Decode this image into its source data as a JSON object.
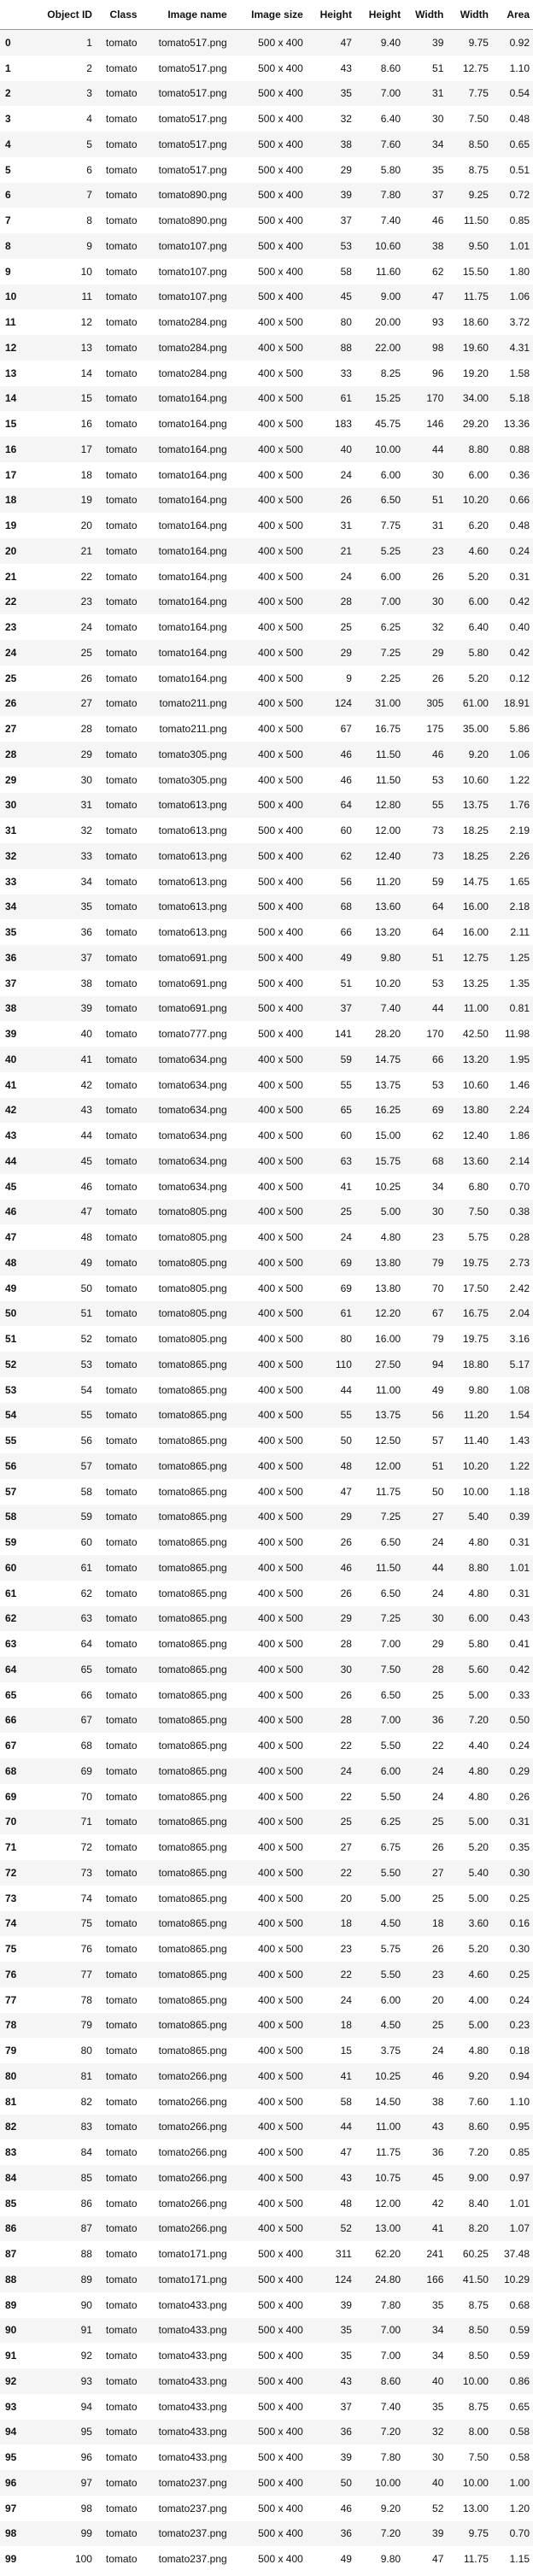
{
  "columns": [
    "",
    "Object ID",
    "Class",
    "Image name",
    "Image size",
    "Height",
    "Height",
    "Width",
    "Width",
    "Area"
  ],
  "rows": [
    [
      "0",
      "1",
      "tomato",
      "tomato517.png",
      "500 x 400",
      "47",
      "9.40",
      "39",
      "9.75",
      "0.92"
    ],
    [
      "1",
      "2",
      "tomato",
      "tomato517.png",
      "500 x 400",
      "43",
      "8.60",
      "51",
      "12.75",
      "1.10"
    ],
    [
      "2",
      "3",
      "tomato",
      "tomato517.png",
      "500 x 400",
      "35",
      "7.00",
      "31",
      "7.75",
      "0.54"
    ],
    [
      "3",
      "4",
      "tomato",
      "tomato517.png",
      "500 x 400",
      "32",
      "6.40",
      "30",
      "7.50",
      "0.48"
    ],
    [
      "4",
      "5",
      "tomato",
      "tomato517.png",
      "500 x 400",
      "38",
      "7.60",
      "34",
      "8.50",
      "0.65"
    ],
    [
      "5",
      "6",
      "tomato",
      "tomato517.png",
      "500 x 400",
      "29",
      "5.80",
      "35",
      "8.75",
      "0.51"
    ],
    [
      "6",
      "7",
      "tomato",
      "tomato890.png",
      "500 x 400",
      "39",
      "7.80",
      "37",
      "9.25",
      "0.72"
    ],
    [
      "7",
      "8",
      "tomato",
      "tomato890.png",
      "500 x 400",
      "37",
      "7.40",
      "46",
      "11.50",
      "0.85"
    ],
    [
      "8",
      "9",
      "tomato",
      "tomato107.png",
      "500 x 400",
      "53",
      "10.60",
      "38",
      "9.50",
      "1.01"
    ],
    [
      "9",
      "10",
      "tomato",
      "tomato107.png",
      "500 x 400",
      "58",
      "11.60",
      "62",
      "15.50",
      "1.80"
    ],
    [
      "10",
      "11",
      "tomato",
      "tomato107.png",
      "500 x 400",
      "45",
      "9.00",
      "47",
      "11.75",
      "1.06"
    ],
    [
      "11",
      "12",
      "tomato",
      "tomato284.png",
      "400 x 500",
      "80",
      "20.00",
      "93",
      "18.60",
      "3.72"
    ],
    [
      "12",
      "13",
      "tomato",
      "tomato284.png",
      "400 x 500",
      "88",
      "22.00",
      "98",
      "19.60",
      "4.31"
    ],
    [
      "13",
      "14",
      "tomato",
      "tomato284.png",
      "400 x 500",
      "33",
      "8.25",
      "96",
      "19.20",
      "1.58"
    ],
    [
      "14",
      "15",
      "tomato",
      "tomato164.png",
      "400 x 500",
      "61",
      "15.25",
      "170",
      "34.00",
      "5.18"
    ],
    [
      "15",
      "16",
      "tomato",
      "tomato164.png",
      "400 x 500",
      "183",
      "45.75",
      "146",
      "29.20",
      "13.36"
    ],
    [
      "16",
      "17",
      "tomato",
      "tomato164.png",
      "400 x 500",
      "40",
      "10.00",
      "44",
      "8.80",
      "0.88"
    ],
    [
      "17",
      "18",
      "tomato",
      "tomato164.png",
      "400 x 500",
      "24",
      "6.00",
      "30",
      "6.00",
      "0.36"
    ],
    [
      "18",
      "19",
      "tomato",
      "tomato164.png",
      "400 x 500",
      "26",
      "6.50",
      "51",
      "10.20",
      "0.66"
    ],
    [
      "19",
      "20",
      "tomato",
      "tomato164.png",
      "400 x 500",
      "31",
      "7.75",
      "31",
      "6.20",
      "0.48"
    ],
    [
      "20",
      "21",
      "tomato",
      "tomato164.png",
      "400 x 500",
      "21",
      "5.25",
      "23",
      "4.60",
      "0.24"
    ],
    [
      "21",
      "22",
      "tomato",
      "tomato164.png",
      "400 x 500",
      "24",
      "6.00",
      "26",
      "5.20",
      "0.31"
    ],
    [
      "22",
      "23",
      "tomato",
      "tomato164.png",
      "400 x 500",
      "28",
      "7.00",
      "30",
      "6.00",
      "0.42"
    ],
    [
      "23",
      "24",
      "tomato",
      "tomato164.png",
      "400 x 500",
      "25",
      "6.25",
      "32",
      "6.40",
      "0.40"
    ],
    [
      "24",
      "25",
      "tomato",
      "tomato164.png",
      "400 x 500",
      "29",
      "7.25",
      "29",
      "5.80",
      "0.42"
    ],
    [
      "25",
      "26",
      "tomato",
      "tomato164.png",
      "400 x 500",
      "9",
      "2.25",
      "26",
      "5.20",
      "0.12"
    ],
    [
      "26",
      "27",
      "tomato",
      "tomato211.png",
      "400 x 500",
      "124",
      "31.00",
      "305",
      "61.00",
      "18.91"
    ],
    [
      "27",
      "28",
      "tomato",
      "tomato211.png",
      "400 x 500",
      "67",
      "16.75",
      "175",
      "35.00",
      "5.86"
    ],
    [
      "28",
      "29",
      "tomato",
      "tomato305.png",
      "400 x 500",
      "46",
      "11.50",
      "46",
      "9.20",
      "1.06"
    ],
    [
      "29",
      "30",
      "tomato",
      "tomato305.png",
      "400 x 500",
      "46",
      "11.50",
      "53",
      "10.60",
      "1.22"
    ],
    [
      "30",
      "31",
      "tomato",
      "tomato613.png",
      "500 x 400",
      "64",
      "12.80",
      "55",
      "13.75",
      "1.76"
    ],
    [
      "31",
      "32",
      "tomato",
      "tomato613.png",
      "500 x 400",
      "60",
      "12.00",
      "73",
      "18.25",
      "2.19"
    ],
    [
      "32",
      "33",
      "tomato",
      "tomato613.png",
      "500 x 400",
      "62",
      "12.40",
      "73",
      "18.25",
      "2.26"
    ],
    [
      "33",
      "34",
      "tomato",
      "tomato613.png",
      "500 x 400",
      "56",
      "11.20",
      "59",
      "14.75",
      "1.65"
    ],
    [
      "34",
      "35",
      "tomato",
      "tomato613.png",
      "500 x 400",
      "68",
      "13.60",
      "64",
      "16.00",
      "2.18"
    ],
    [
      "35",
      "36",
      "tomato",
      "tomato613.png",
      "500 x 400",
      "66",
      "13.20",
      "64",
      "16.00",
      "2.11"
    ],
    [
      "36",
      "37",
      "tomato",
      "tomato691.png",
      "500 x 400",
      "49",
      "9.80",
      "51",
      "12.75",
      "1.25"
    ],
    [
      "37",
      "38",
      "tomato",
      "tomato691.png",
      "500 x 400",
      "51",
      "10.20",
      "53",
      "13.25",
      "1.35"
    ],
    [
      "38",
      "39",
      "tomato",
      "tomato691.png",
      "500 x 400",
      "37",
      "7.40",
      "44",
      "11.00",
      "0.81"
    ],
    [
      "39",
      "40",
      "tomato",
      "tomato777.png",
      "500 x 400",
      "141",
      "28.20",
      "170",
      "42.50",
      "11.98"
    ],
    [
      "40",
      "41",
      "tomato",
      "tomato634.png",
      "400 x 500",
      "59",
      "14.75",
      "66",
      "13.20",
      "1.95"
    ],
    [
      "41",
      "42",
      "tomato",
      "tomato634.png",
      "400 x 500",
      "55",
      "13.75",
      "53",
      "10.60",
      "1.46"
    ],
    [
      "42",
      "43",
      "tomato",
      "tomato634.png",
      "400 x 500",
      "65",
      "16.25",
      "69",
      "13.80",
      "2.24"
    ],
    [
      "43",
      "44",
      "tomato",
      "tomato634.png",
      "400 x 500",
      "60",
      "15.00",
      "62",
      "12.40",
      "1.86"
    ],
    [
      "44",
      "45",
      "tomato",
      "tomato634.png",
      "400 x 500",
      "63",
      "15.75",
      "68",
      "13.60",
      "2.14"
    ],
    [
      "45",
      "46",
      "tomato",
      "tomato634.png",
      "400 x 500",
      "41",
      "10.25",
      "34",
      "6.80",
      "0.70"
    ],
    [
      "46",
      "47",
      "tomato",
      "tomato805.png",
      "400 x 500",
      "25",
      "5.00",
      "30",
      "7.50",
      "0.38"
    ],
    [
      "47",
      "48",
      "tomato",
      "tomato805.png",
      "400 x 500",
      "24",
      "4.80",
      "23",
      "5.75",
      "0.28"
    ],
    [
      "48",
      "49",
      "tomato",
      "tomato805.png",
      "400 x 500",
      "69",
      "13.80",
      "79",
      "19.75",
      "2.73"
    ],
    [
      "49",
      "50",
      "tomato",
      "tomato805.png",
      "400 x 500",
      "69",
      "13.80",
      "70",
      "17.50",
      "2.42"
    ],
    [
      "50",
      "51",
      "tomato",
      "tomato805.png",
      "400 x 500",
      "61",
      "12.20",
      "67",
      "16.75",
      "2.04"
    ],
    [
      "51",
      "52",
      "tomato",
      "tomato805.png",
      "400 x 500",
      "80",
      "16.00",
      "79",
      "19.75",
      "3.16"
    ],
    [
      "52",
      "53",
      "tomato",
      "tomato865.png",
      "400 x 500",
      "110",
      "27.50",
      "94",
      "18.80",
      "5.17"
    ],
    [
      "53",
      "54",
      "tomato",
      "tomato865.png",
      "400 x 500",
      "44",
      "11.00",
      "49",
      "9.80",
      "1.08"
    ],
    [
      "54",
      "55",
      "tomato",
      "tomato865.png",
      "400 x 500",
      "55",
      "13.75",
      "56",
      "11.20",
      "1.54"
    ],
    [
      "55",
      "56",
      "tomato",
      "tomato865.png",
      "400 x 500",
      "50",
      "12.50",
      "57",
      "11.40",
      "1.43"
    ],
    [
      "56",
      "57",
      "tomato",
      "tomato865.png",
      "400 x 500",
      "48",
      "12.00",
      "51",
      "10.20",
      "1.22"
    ],
    [
      "57",
      "58",
      "tomato",
      "tomato865.png",
      "400 x 500",
      "47",
      "11.75",
      "50",
      "10.00",
      "1.18"
    ],
    [
      "58",
      "59",
      "tomato",
      "tomato865.png",
      "400 x 500",
      "29",
      "7.25",
      "27",
      "5.40",
      "0.39"
    ],
    [
      "59",
      "60",
      "tomato",
      "tomato865.png",
      "400 x 500",
      "26",
      "6.50",
      "24",
      "4.80",
      "0.31"
    ],
    [
      "60",
      "61",
      "tomato",
      "tomato865.png",
      "400 x 500",
      "46",
      "11.50",
      "44",
      "8.80",
      "1.01"
    ],
    [
      "61",
      "62",
      "tomato",
      "tomato865.png",
      "400 x 500",
      "26",
      "6.50",
      "24",
      "4.80",
      "0.31"
    ],
    [
      "62",
      "63",
      "tomato",
      "tomato865.png",
      "400 x 500",
      "29",
      "7.25",
      "30",
      "6.00",
      "0.43"
    ],
    [
      "63",
      "64",
      "tomato",
      "tomato865.png",
      "400 x 500",
      "28",
      "7.00",
      "29",
      "5.80",
      "0.41"
    ],
    [
      "64",
      "65",
      "tomato",
      "tomato865.png",
      "400 x 500",
      "30",
      "7.50",
      "28",
      "5.60",
      "0.42"
    ],
    [
      "65",
      "66",
      "tomato",
      "tomato865.png",
      "400 x 500",
      "26",
      "6.50",
      "25",
      "5.00",
      "0.33"
    ],
    [
      "66",
      "67",
      "tomato",
      "tomato865.png",
      "400 x 500",
      "28",
      "7.00",
      "36",
      "7.20",
      "0.50"
    ],
    [
      "67",
      "68",
      "tomato",
      "tomato865.png",
      "400 x 500",
      "22",
      "5.50",
      "22",
      "4.40",
      "0.24"
    ],
    [
      "68",
      "69",
      "tomato",
      "tomato865.png",
      "400 x 500",
      "24",
      "6.00",
      "24",
      "4.80",
      "0.29"
    ],
    [
      "69",
      "70",
      "tomato",
      "tomato865.png",
      "400 x 500",
      "22",
      "5.50",
      "24",
      "4.80",
      "0.26"
    ],
    [
      "70",
      "71",
      "tomato",
      "tomato865.png",
      "400 x 500",
      "25",
      "6.25",
      "25",
      "5.00",
      "0.31"
    ],
    [
      "71",
      "72",
      "tomato",
      "tomato865.png",
      "400 x 500",
      "27",
      "6.75",
      "26",
      "5.20",
      "0.35"
    ],
    [
      "72",
      "73",
      "tomato",
      "tomato865.png",
      "400 x 500",
      "22",
      "5.50",
      "27",
      "5.40",
      "0.30"
    ],
    [
      "73",
      "74",
      "tomato",
      "tomato865.png",
      "400 x 500",
      "20",
      "5.00",
      "25",
      "5.00",
      "0.25"
    ],
    [
      "74",
      "75",
      "tomato",
      "tomato865.png",
      "400 x 500",
      "18",
      "4.50",
      "18",
      "3.60",
      "0.16"
    ],
    [
      "75",
      "76",
      "tomato",
      "tomato865.png",
      "400 x 500",
      "23",
      "5.75",
      "26",
      "5.20",
      "0.30"
    ],
    [
      "76",
      "77",
      "tomato",
      "tomato865.png",
      "400 x 500",
      "22",
      "5.50",
      "23",
      "4.60",
      "0.25"
    ],
    [
      "77",
      "78",
      "tomato",
      "tomato865.png",
      "400 x 500",
      "24",
      "6.00",
      "20",
      "4.00",
      "0.24"
    ],
    [
      "78",
      "79",
      "tomato",
      "tomato865.png",
      "400 x 500",
      "18",
      "4.50",
      "25",
      "5.00",
      "0.23"
    ],
    [
      "79",
      "80",
      "tomato",
      "tomato865.png",
      "400 x 500",
      "15",
      "3.75",
      "24",
      "4.80",
      "0.18"
    ],
    [
      "80",
      "81",
      "tomato",
      "tomato266.png",
      "400 x 500",
      "41",
      "10.25",
      "46",
      "9.20",
      "0.94"
    ],
    [
      "81",
      "82",
      "tomato",
      "tomato266.png",
      "400 x 500",
      "58",
      "14.50",
      "38",
      "7.60",
      "1.10"
    ],
    [
      "82",
      "83",
      "tomato",
      "tomato266.png",
      "400 x 500",
      "44",
      "11.00",
      "43",
      "8.60",
      "0.95"
    ],
    [
      "83",
      "84",
      "tomato",
      "tomato266.png",
      "400 x 500",
      "47",
      "11.75",
      "36",
      "7.20",
      "0.85"
    ],
    [
      "84",
      "85",
      "tomato",
      "tomato266.png",
      "400 x 500",
      "43",
      "10.75",
      "45",
      "9.00",
      "0.97"
    ],
    [
      "85",
      "86",
      "tomato",
      "tomato266.png",
      "400 x 500",
      "48",
      "12.00",
      "42",
      "8.40",
      "1.01"
    ],
    [
      "86",
      "87",
      "tomato",
      "tomato266.png",
      "400 x 500",
      "52",
      "13.00",
      "41",
      "8.20",
      "1.07"
    ],
    [
      "87",
      "88",
      "tomato",
      "tomato171.png",
      "500 x 400",
      "311",
      "62.20",
      "241",
      "60.25",
      "37.48"
    ],
    [
      "88",
      "89",
      "tomato",
      "tomato171.png",
      "500 x 400",
      "124",
      "24.80",
      "166",
      "41.50",
      "10.29"
    ],
    [
      "89",
      "90",
      "tomato",
      "tomato433.png",
      "500 x 400",
      "39",
      "7.80",
      "35",
      "8.75",
      "0.68"
    ],
    [
      "90",
      "91",
      "tomato",
      "tomato433.png",
      "500 x 400",
      "35",
      "7.00",
      "34",
      "8.50",
      "0.59"
    ],
    [
      "91",
      "92",
      "tomato",
      "tomato433.png",
      "500 x 400",
      "35",
      "7.00",
      "34",
      "8.50",
      "0.59"
    ],
    [
      "92",
      "93",
      "tomato",
      "tomato433.png",
      "500 x 400",
      "43",
      "8.60",
      "40",
      "10.00",
      "0.86"
    ],
    [
      "93",
      "94",
      "tomato",
      "tomato433.png",
      "500 x 400",
      "37",
      "7.40",
      "35",
      "8.75",
      "0.65"
    ],
    [
      "94",
      "95",
      "tomato",
      "tomato433.png",
      "500 x 400",
      "36",
      "7.20",
      "32",
      "8.00",
      "0.58"
    ],
    [
      "95",
      "96",
      "tomato",
      "tomato433.png",
      "500 x 400",
      "39",
      "7.80",
      "30",
      "7.50",
      "0.58"
    ],
    [
      "96",
      "97",
      "tomato",
      "tomato237.png",
      "500 x 400",
      "50",
      "10.00",
      "40",
      "10.00",
      "1.00"
    ],
    [
      "97",
      "98",
      "tomato",
      "tomato237.png",
      "500 x 400",
      "46",
      "9.20",
      "52",
      "13.00",
      "1.20"
    ],
    [
      "98",
      "99",
      "tomato",
      "tomato237.png",
      "500 x 400",
      "36",
      "7.20",
      "39",
      "9.75",
      "0.70"
    ],
    [
      "99",
      "100",
      "tomato",
      "tomato237.png",
      "500 x 400",
      "49",
      "9.80",
      "47",
      "11.75",
      "1.15"
    ]
  ]
}
